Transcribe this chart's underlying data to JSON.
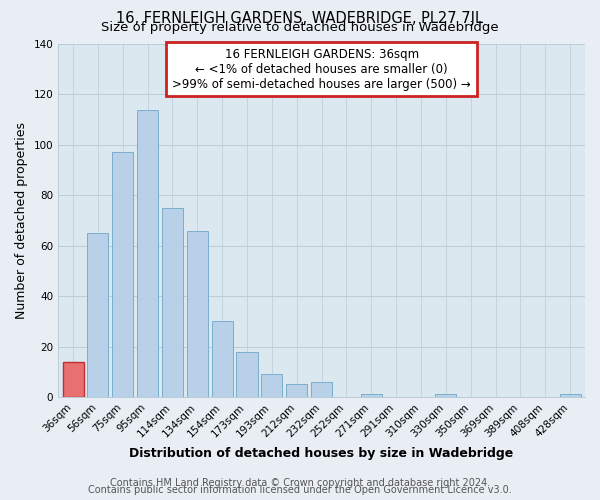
{
  "title": "16, FERNLEIGH GARDENS, WADEBRIDGE, PL27 7JL",
  "subtitle": "Size of property relative to detached houses in Wadebridge",
  "xlabel": "Distribution of detached houses by size in Wadebridge",
  "ylabel": "Number of detached properties",
  "bar_labels": [
    "36sqm",
    "56sqm",
    "75sqm",
    "95sqm",
    "114sqm",
    "134sqm",
    "154sqm",
    "173sqm",
    "193sqm",
    "212sqm",
    "232sqm",
    "252sqm",
    "271sqm",
    "291sqm",
    "310sqm",
    "330sqm",
    "350sqm",
    "369sqm",
    "389sqm",
    "408sqm",
    "428sqm"
  ],
  "bar_values": [
    14,
    65,
    97,
    114,
    75,
    66,
    30,
    18,
    9,
    5,
    6,
    0,
    1,
    0,
    0,
    1,
    0,
    0,
    0,
    0,
    1
  ],
  "bar_color": "#b8d0e8",
  "bar_edge_color": "#7aaece",
  "highlight_bar_index": 0,
  "highlight_bar_color": "#e87070",
  "highlight_bar_edge_color": "#c03030",
  "annotation_title": "16 FERNLEIGH GARDENS: 36sqm",
  "annotation_line1": "← <1% of detached houses are smaller (0)",
  "annotation_line2": ">99% of semi-detached houses are larger (500) →",
  "annotation_box_color": "#ffffff",
  "annotation_box_edge": "#cc2222",
  "ylim": [
    0,
    140
  ],
  "yticks": [
    0,
    20,
    40,
    60,
    80,
    100,
    120,
    140
  ],
  "footer1": "Contains HM Land Registry data © Crown copyright and database right 2024.",
  "footer2": "Contains public sector information licensed under the Open Government Licence v3.0.",
  "bg_color": "#e8eef4",
  "plot_bg_color": "#dce8f0",
  "grid_color": "#b8ccd8",
  "title_fontsize": 10.5,
  "subtitle_fontsize": 9.5,
  "label_fontsize": 9,
  "tick_fontsize": 7.5,
  "footer_fontsize": 7,
  "ann_fontsize": 8.5
}
